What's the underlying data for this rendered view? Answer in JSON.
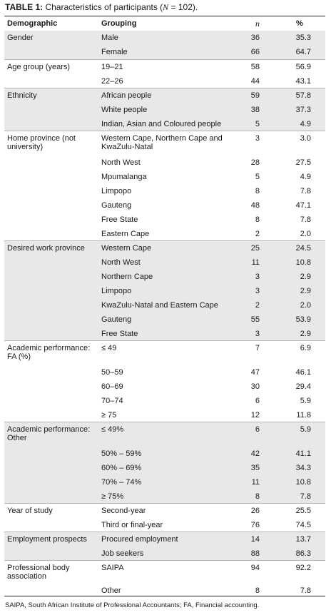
{
  "caption": {
    "label": "TABLE 1:",
    "text_before": " Characteristics of participants (",
    "n_symbol": "N",
    "text_after": " = 102)."
  },
  "header": {
    "demographic": "Demographic",
    "grouping": "Grouping",
    "n": "n",
    "percent": "%"
  },
  "groups": [
    {
      "demographic": "Gender",
      "rows": [
        {
          "grouping": "Male",
          "n": "36",
          "pct": "35.3"
        },
        {
          "grouping": "Female",
          "n": "66",
          "pct": "64.7"
        }
      ]
    },
    {
      "demographic": "Age group (years)",
      "rows": [
        {
          "grouping": "19–21",
          "n": "58",
          "pct": "56.9"
        },
        {
          "grouping": "22–26",
          "n": "44",
          "pct": "43.1"
        }
      ]
    },
    {
      "demographic": "Ethnicity",
      "rows": [
        {
          "grouping": "African people",
          "n": "59",
          "pct": "57.8"
        },
        {
          "grouping": "White people",
          "n": "38",
          "pct": "37.3"
        },
        {
          "grouping": "Indian, Asian and Coloured people",
          "n": "5",
          "pct": "4.9"
        }
      ]
    },
    {
      "demographic": "Home province (not university)",
      "rows": [
        {
          "grouping": "Western Cape, Northern Cape and KwaZulu-Natal",
          "n": "3",
          "pct": "3.0"
        },
        {
          "grouping": "North West",
          "n": "28",
          "pct": "27.5"
        },
        {
          "grouping": "Mpumalanga",
          "n": "5",
          "pct": "4.9"
        },
        {
          "grouping": "Limpopo",
          "n": "8",
          "pct": "7.8"
        },
        {
          "grouping": "Gauteng",
          "n": "48",
          "pct": "47.1"
        },
        {
          "grouping": "Free State",
          "n": "8",
          "pct": "7.8"
        },
        {
          "grouping": "Eastern Cape",
          "n": "2",
          "pct": "2.0"
        }
      ]
    },
    {
      "demographic": "Desired work province",
      "rows": [
        {
          "grouping": "Western Cape",
          "n": "25",
          "pct": "24.5"
        },
        {
          "grouping": "North West",
          "n": "11",
          "pct": "10.8"
        },
        {
          "grouping": "Northern Cape",
          "n": "3",
          "pct": "2.9"
        },
        {
          "grouping": "Limpopo",
          "n": "3",
          "pct": "2.9"
        },
        {
          "grouping": "KwaZulu-Natal and Eastern Cape",
          "n": "2",
          "pct": "2.0"
        },
        {
          "grouping": "Gauteng",
          "n": "55",
          "pct": "53.9"
        },
        {
          "grouping": "Free State",
          "n": "3",
          "pct": "2.9"
        }
      ]
    },
    {
      "demographic": "Academic performance: FA (%)",
      "rows": [
        {
          "grouping": "≤ 49",
          "n": "7",
          "pct": "6.9"
        },
        {
          "grouping": "50–59",
          "n": "47",
          "pct": "46.1"
        },
        {
          "grouping": "60–69",
          "n": "30",
          "pct": "29.4"
        },
        {
          "grouping": "70–74",
          "n": "6",
          "pct": "5.9"
        },
        {
          "grouping": "≥ 75",
          "n": "12",
          "pct": "11.8"
        }
      ]
    },
    {
      "demographic": "Academic performance: Other",
      "rows": [
        {
          "grouping": "≤ 49%",
          "n": "6",
          "pct": "5.9"
        },
        {
          "grouping": "50% – 59%",
          "n": "42",
          "pct": "41.1"
        },
        {
          "grouping": "60% – 69%",
          "n": "35",
          "pct": "34.3"
        },
        {
          "grouping": "70% – 74%",
          "n": "11",
          "pct": "10.8"
        },
        {
          "grouping": "≥ 75%",
          "n": "8",
          "pct": "7.8"
        }
      ]
    },
    {
      "demographic": "Year of study",
      "rows": [
        {
          "grouping": "Second-year",
          "n": "26",
          "pct": "25.5"
        },
        {
          "grouping": "Third or final-year",
          "n": "76",
          "pct": "74.5"
        }
      ]
    },
    {
      "demographic": "Employment prospects",
      "rows": [
        {
          "grouping": "Procured employment",
          "n": "14",
          "pct": "13.7"
        },
        {
          "grouping": "Job seekers",
          "n": "88",
          "pct": "86.3"
        }
      ]
    },
    {
      "demographic": "Professional body association",
      "rows": [
        {
          "grouping": "SAIPA",
          "n": "94",
          "pct": "92.2"
        },
        {
          "grouping": "Other",
          "n": "8",
          "pct": "7.8"
        }
      ]
    }
  ],
  "footnote": "SAIPA, South African Institute of Professional Accountants; FA, Financial accounting."
}
